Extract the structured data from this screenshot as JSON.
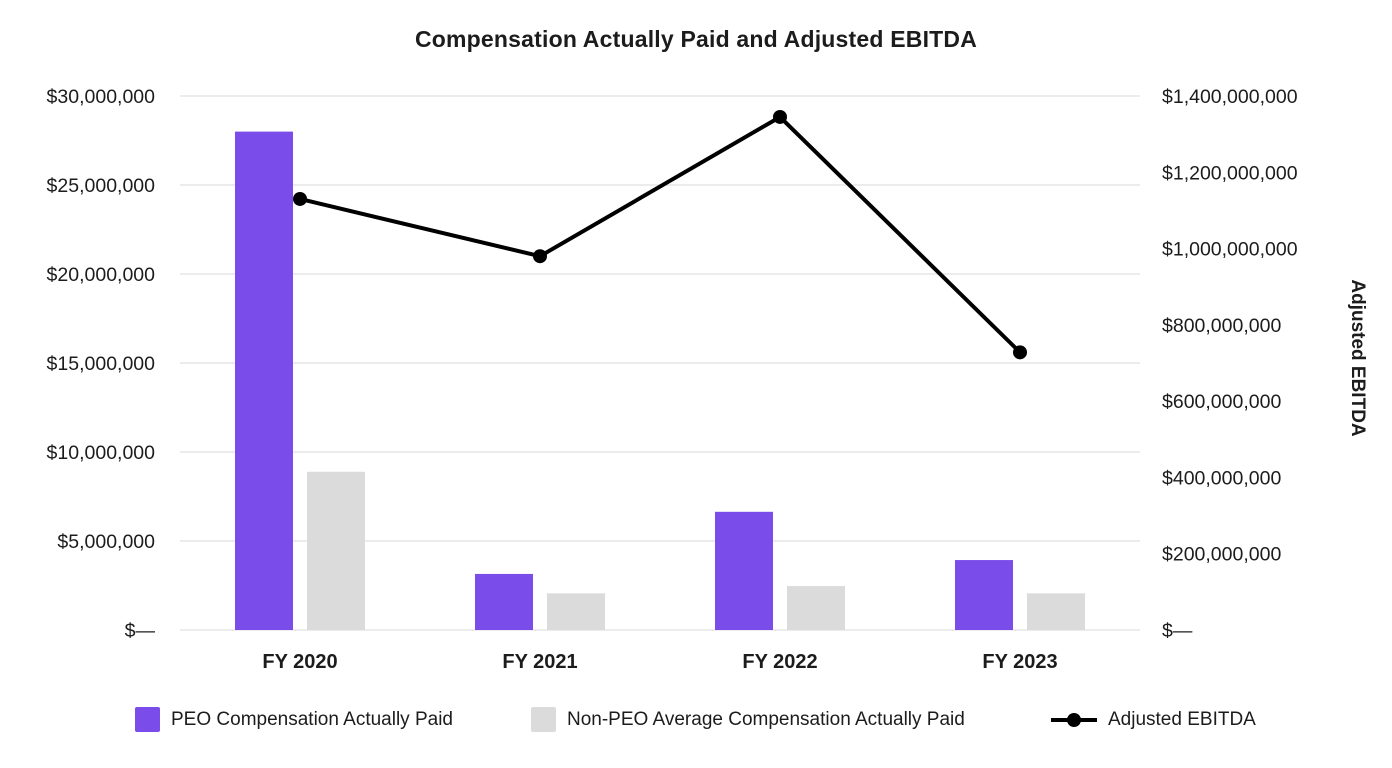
{
  "title": "Compensation Actually Paid and Adjusted EBITDA",
  "colors": {
    "peo_bar": "#7A4DEB",
    "non_peo_bar": "#DBDBDB",
    "ebitda_line": "#000000",
    "gridline": "#ECECEC",
    "text": "#1c1c1c"
  },
  "chart_data": {
    "type": "combo-bar-line",
    "categories": [
      "FY 2020",
      "FY 2021",
      "FY 2022",
      "FY 2023"
    ],
    "series": [
      {
        "name": "PEO Compensation Actually Paid",
        "kind": "bar",
        "axis": "left",
        "color": "#7A4DEB",
        "values": [
          28000000,
          3150000,
          6640000,
          3930000
        ]
      },
      {
        "name": "Non-PEO Average Compensation Actually Paid",
        "kind": "bar",
        "axis": "left",
        "color": "#DBDBDB",
        "values": [
          8890000,
          2060000,
          2470000,
          2060000
        ]
      },
      {
        "name": "Adjusted EBITDA",
        "kind": "line",
        "axis": "right",
        "color": "#000000",
        "values": [
          1130000000,
          980000000,
          1345000000,
          728000000
        ]
      }
    ],
    "left_axis": {
      "min": 0,
      "max": 30000000,
      "step": 5000000,
      "tick_labels": [
        "$—",
        "$5,000,000",
        "$10,000,000",
        "$15,000,000",
        "$20,000,000",
        "$25,000,000",
        "$30,000,000"
      ]
    },
    "right_axis": {
      "min": 0,
      "max": 1400000000,
      "step": 200000000,
      "title": "Adjusted EBITDA",
      "tick_labels": [
        "$—",
        "$200,000,000",
        "$400,000,000",
        "$600,000,000",
        "$800,000,000",
        "$1,000,000,000",
        "$1,200,000,000",
        "$1,400,000,000"
      ]
    },
    "grid": true,
    "legend_position": "bottom"
  }
}
